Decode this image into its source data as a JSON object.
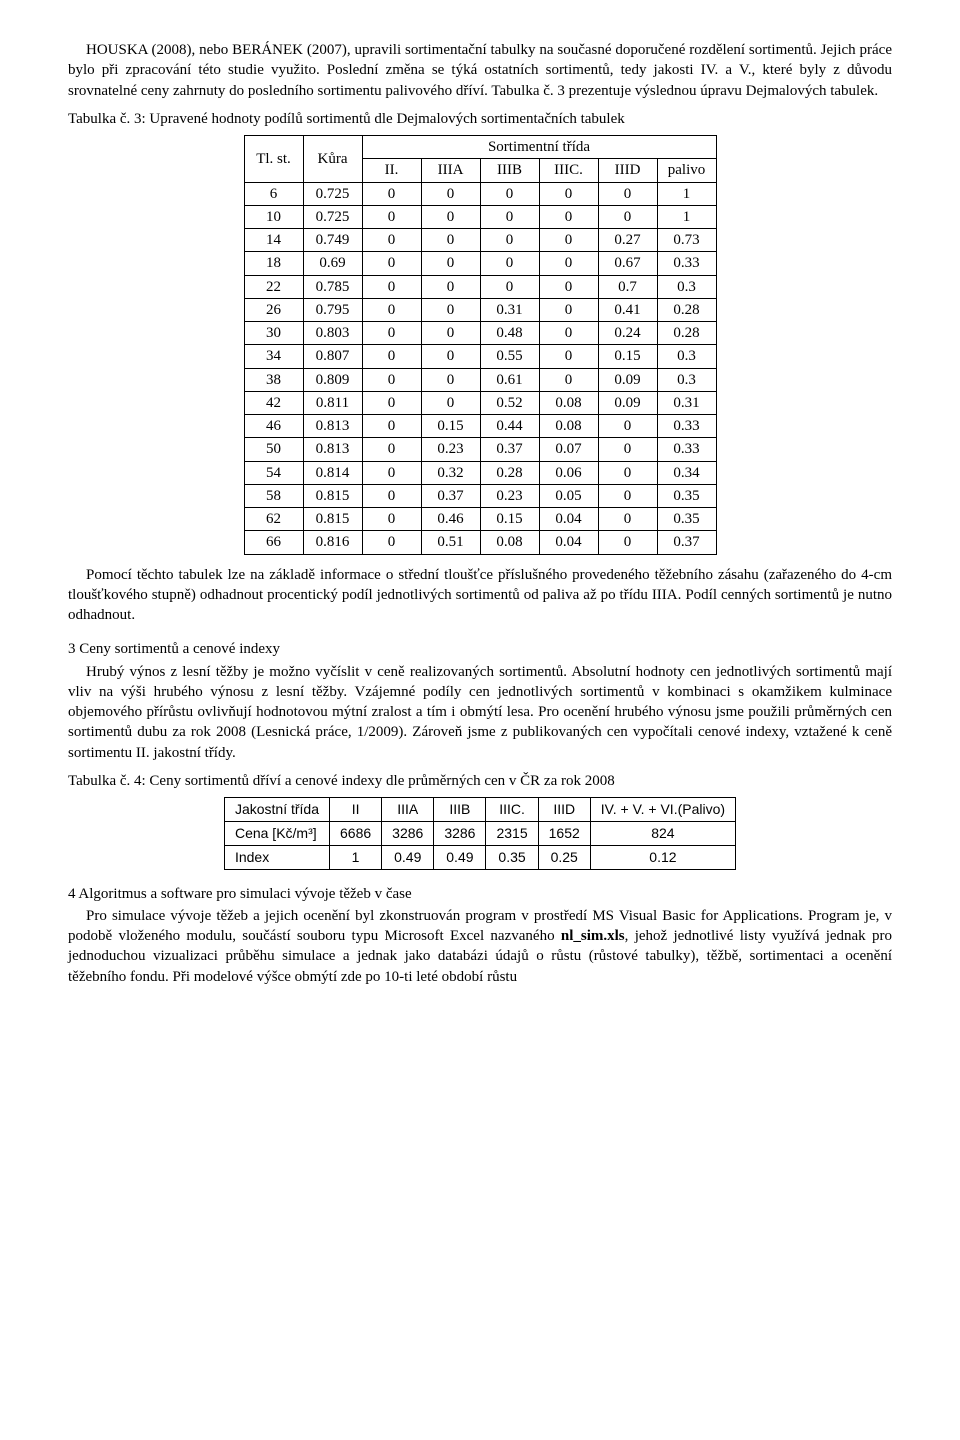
{
  "intro": {
    "p1": "HOUSKA (2008), nebo BERÁNEK (2007), upravili sortimentační tabulky na současné doporučené rozdělení sortimentů. Jejich práce bylo při zpracování této studie využito. Poslední změna se týká ostatních sortimentů, tedy jakosti IV. a V., které byly z důvodu srovnatelné ceny zahrnuty do posledního sortimentu palivového dříví. Tabulka č. 3 prezentuje výslednou úpravu Dejmalových tabulek."
  },
  "table3": {
    "caption": "Tabulka č. 3: Upravené hodnoty podílů sortimentů dle  Dejmalových sortimentačních tabulek",
    "header": {
      "col1": "Tl. st.",
      "col2": "Kůra",
      "group": "Sortimentní třída",
      "cols": [
        "II.",
        "IIIA",
        "IIIB",
        "IIIC.",
        "IIID",
        "palivo"
      ]
    },
    "rows": [
      [
        "6",
        "0.725",
        "0",
        "0",
        "0",
        "0",
        "0",
        "1"
      ],
      [
        "10",
        "0.725",
        "0",
        "0",
        "0",
        "0",
        "0",
        "1"
      ],
      [
        "14",
        "0.749",
        "0",
        "0",
        "0",
        "0",
        "0.27",
        "0.73"
      ],
      [
        "18",
        "0.69",
        "0",
        "0",
        "0",
        "0",
        "0.67",
        "0.33"
      ],
      [
        "22",
        "0.785",
        "0",
        "0",
        "0",
        "0",
        "0.7",
        "0.3"
      ],
      [
        "26",
        "0.795",
        "0",
        "0",
        "0.31",
        "0",
        "0.41",
        "0.28"
      ],
      [
        "30",
        "0.803",
        "0",
        "0",
        "0.48",
        "0",
        "0.24",
        "0.28"
      ],
      [
        "34",
        "0.807",
        "0",
        "0",
        "0.55",
        "0",
        "0.15",
        "0.3"
      ],
      [
        "38",
        "0.809",
        "0",
        "0",
        "0.61",
        "0",
        "0.09",
        "0.3"
      ],
      [
        "42",
        "0.811",
        "0",
        "0",
        "0.52",
        "0.08",
        "0.09",
        "0.31"
      ],
      [
        "46",
        "0.813",
        "0",
        "0.15",
        "0.44",
        "0.08",
        "0",
        "0.33"
      ],
      [
        "50",
        "0.813",
        "0",
        "0.23",
        "0.37",
        "0.07",
        "0",
        "0.33"
      ],
      [
        "54",
        "0.814",
        "0",
        "0.32",
        "0.28",
        "0.06",
        "0",
        "0.34"
      ],
      [
        "58",
        "0.815",
        "0",
        "0.37",
        "0.23",
        "0.05",
        "0",
        "0.35"
      ],
      [
        "62",
        "0.815",
        "0",
        "0.46",
        "0.15",
        "0.04",
        "0",
        "0.35"
      ],
      [
        "66",
        "0.816",
        "0",
        "0.51",
        "0.08",
        "0.04",
        "0",
        "0.37"
      ]
    ]
  },
  "mid": {
    "p1": "Pomocí těchto tabulek lze na základě informace o střední tloušťce příslušného provedeného těžebního zásahu (zařazeného do 4-cm tloušťkového stupně) odhadnout procentický podíl jednotlivých sortimentů od paliva až po třídu IIIA. Podíl cenných sortimentů je nutno odhadnout."
  },
  "sec3": {
    "head": "3 Ceny sortimentů a cenové indexy",
    "p1": "Hrubý výnos  z lesní těžby je možno vyčíslit v ceně realizovaných sortimentů. Absolutní hodnoty cen jednotlivých sortimentů mají vliv  na výši hrubého výnosu  z lesní těžby. Vzájemné podíly cen jednotlivých sortimentů v kombinaci s okamžikem kulminace objemového přírůstu ovlivňují hodnotovou mýtní zralost a tím i obmýtí lesa. Pro ocenění hrubého výnosu jsme použili průměrných cen sortimentů dubu za rok 2008 (Lesnická práce, 1/2009). Zároveň jsme z publikovaných cen vypočítali cenové indexy, vztažené k ceně sortimentu II. jakostní třídy."
  },
  "table4": {
    "caption": "Tabulka č. 4: Ceny sortimentů dříví a cenové indexy dle průměrných cen v ČR za rok 2008",
    "head": [
      "Jakostní třída",
      "II",
      "IIIA",
      "IIIB",
      "IIIC.",
      "IIID",
      "IV. + V. + VI.(Palivo)"
    ],
    "row1_label": "Cena [Kč/m³]",
    "row1": [
      "6686",
      "3286",
      "3286",
      "2315",
      "1652",
      "824"
    ],
    "row2_label": "Index",
    "row2": [
      "1",
      "0.49",
      "0.49",
      "0.35",
      "0.25",
      "0.12"
    ]
  },
  "sec4": {
    "head": "4 Algoritmus a software pro simulaci vývoje těžeb v čase",
    "p1a": "Pro simulace vývoje těžeb a jejich ocenění byl zkonstruován program v prostředí MS Visual Basic for Applications. Program je, v podobě vloženého modulu, součástí souboru typu Microsoft Excel nazvaného ",
    "bold": "nl_sim.xls",
    "p1b": ", jehož jednotlivé listy využívá jednak pro jednoduchou vizualizaci průběhu simulace a jednak jako databázi údajů o růstu (růstové tabulky), těžbě, sortimentaci a ocenění těžebního fondu. Při modelové výšce  obmýtí zde po 10-ti leté období růstu"
  }
}
